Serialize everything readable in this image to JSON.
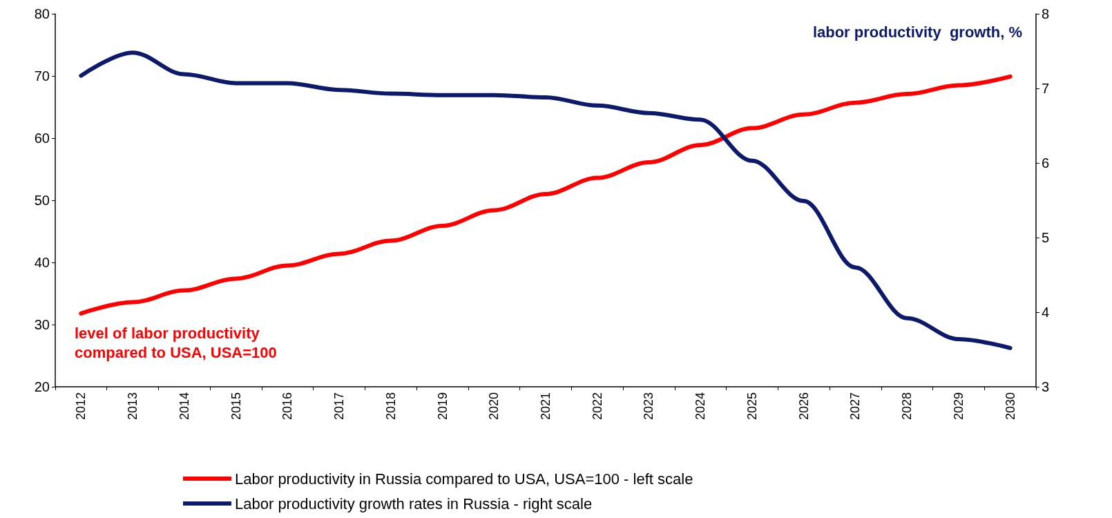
{
  "chart_data": {
    "type": "line",
    "categories": [
      "2012",
      "2013",
      "2014",
      "2015",
      "2016",
      "2017",
      "2018",
      "2019",
      "2020",
      "2021",
      "2022",
      "2023",
      "2024",
      "2025",
      "2026",
      "2027",
      "2028",
      "2029",
      "2030"
    ],
    "series": [
      {
        "name": "Labor productivity in Russia compared to USA, USA=100 - left scale",
        "color": "#ff0000",
        "values": [
          31.8,
          33.6,
          35.5,
          37.4,
          39.5,
          41.4,
          43.5,
          45.9,
          48.4,
          51,
          53.6,
          56.1,
          58.9,
          61.6,
          63.8,
          65.7,
          67.1,
          68.5,
          69.9
        ]
      },
      {
        "name": "Labor productivity growth rates in Russia - right scale",
        "color": "#0d1a6b",
        "axis": "y2",
        "values": [
          7.17,
          7.48,
          7.19,
          7.07,
          7.07,
          6.98,
          6.93,
          6.91,
          6.91,
          6.88,
          6.77,
          6.67,
          6.58,
          6.03,
          5.49,
          4.6,
          3.92,
          3.64,
          3.52
        ]
      }
    ],
    "ylim": [
      20,
      80
    ],
    "yticks": [
      20,
      30,
      40,
      50,
      60,
      70,
      80
    ],
    "y2lim": [
      3,
      8
    ],
    "y2ticks": [
      3,
      4,
      5,
      6,
      7,
      8
    ],
    "annotations": [
      "level of labor productivity\ncompared to USA, USA=100",
      "labor productivity  growth, %"
    ],
    "legend": "bottom",
    "grid": false,
    "marker": "none",
    "line_style": "solid"
  }
}
